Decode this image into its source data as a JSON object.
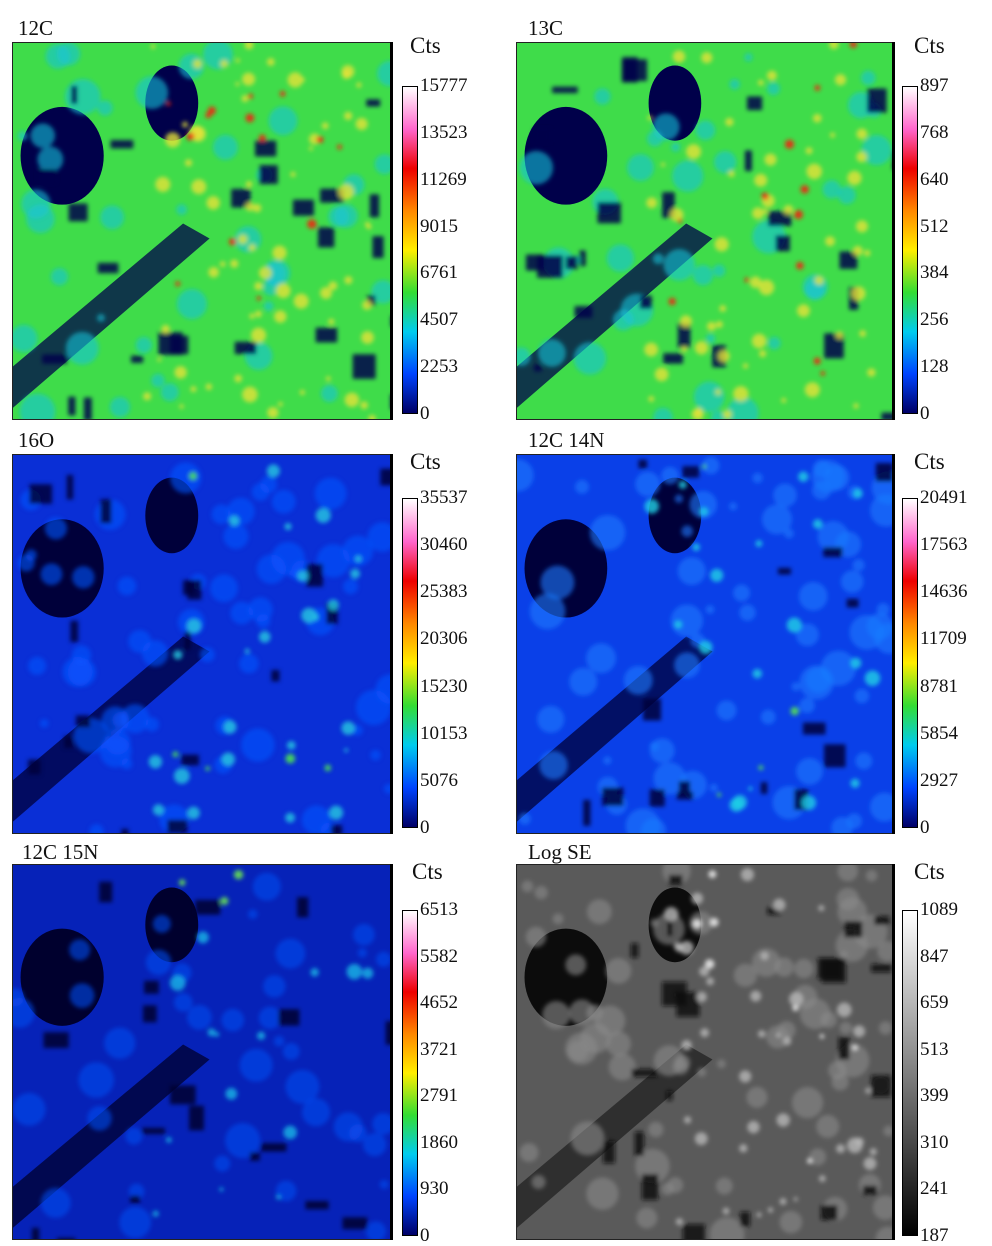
{
  "panels": [
    {
      "title": "12C",
      "unit": "Cts",
      "scheme": "jet",
      "ticks": [
        "15777",
        "13523",
        "11269",
        "9015",
        "6761",
        "4507",
        "2253",
        "0"
      ]
    },
    {
      "title": "13C",
      "unit": "Cts",
      "scheme": "jet",
      "ticks": [
        "897",
        "768",
        "640",
        "512",
        "384",
        "256",
        "128",
        "0"
      ]
    },
    {
      "title": "16O",
      "unit": "Cts",
      "scheme": "jet",
      "ticks": [
        "35537",
        "30460",
        "25383",
        "20306",
        "15230",
        "10153",
        "5076",
        "0"
      ]
    },
    {
      "title": "12C 14N",
      "unit": "Cts",
      "scheme": "jet",
      "ticks": [
        "20491",
        "17563",
        "14636",
        "11709",
        "8781",
        "5854",
        "2927",
        "0"
      ]
    },
    {
      "title": "12C 15N",
      "unit": "Cts",
      "scheme": "jet",
      "ticks": [
        "6513",
        "5582",
        "4652",
        "3721",
        "2791",
        "1860",
        "930",
        "0"
      ]
    },
    {
      "title": "Log SE",
      "unit": "Cts",
      "scheme": "gray",
      "ticks": [
        "1089",
        "847",
        "659",
        "513",
        "399",
        "310",
        "241",
        "187"
      ]
    }
  ],
  "colors": {
    "jet": [
      "#ffffff",
      "#ff66cc",
      "#ee0000",
      "#ff8800",
      "#ffee00",
      "#33dd33",
      "#00ccee",
      "#0044ff",
      "#000066"
    ],
    "gray": [
      "#ffffff",
      "#000000"
    ]
  }
}
